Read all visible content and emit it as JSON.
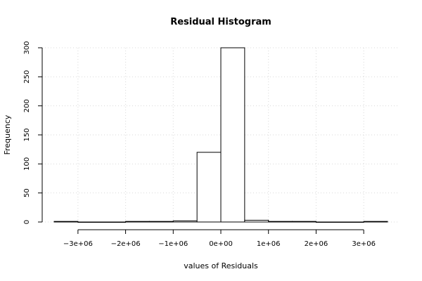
{
  "chart_data": {
    "type": "bar",
    "title": "Residual Histogram",
    "xlabel": "values of Residuals",
    "ylabel": "Frequency",
    "bin_width": 500000,
    "bins": [
      {
        "x0": -3500000,
        "x1": -3000000,
        "count": 1
      },
      {
        "x0": -3000000,
        "x1": -2500000,
        "count": 0
      },
      {
        "x0": -2500000,
        "x1": -2000000,
        "count": 0
      },
      {
        "x0": -2000000,
        "x1": -1500000,
        "count": 1
      },
      {
        "x0": -1500000,
        "x1": -1000000,
        "count": 1
      },
      {
        "x0": -1000000,
        "x1": -500000,
        "count": 2
      },
      {
        "x0": -500000,
        "x1": 0,
        "count": 120
      },
      {
        "x0": 0,
        "x1": 500000,
        "count": 300
      },
      {
        "x0": 500000,
        "x1": 1000000,
        "count": 3
      },
      {
        "x0": 1000000,
        "x1": 1500000,
        "count": 1
      },
      {
        "x0": 1500000,
        "x1": 2000000,
        "count": 1
      },
      {
        "x0": 2000000,
        "x1": 2500000,
        "count": 0
      },
      {
        "x0": 2500000,
        "x1": 3000000,
        "count": 0
      },
      {
        "x0": 3000000,
        "x1": 3500000,
        "count": 1
      }
    ],
    "xlim": [
      -3500000,
      3500000
    ],
    "ylim": [
      0,
      300
    ],
    "x_ticks": [
      {
        "value": -3000000,
        "label": "−3e+06"
      },
      {
        "value": -2000000,
        "label": "−2e+06"
      },
      {
        "value": -1000000,
        "label": "−1e+06"
      },
      {
        "value": 0,
        "label": "0e+00"
      },
      {
        "value": 1000000,
        "label": "1e+06"
      },
      {
        "value": 2000000,
        "label": "2e+06"
      },
      {
        "value": 3000000,
        "label": "3e+06"
      }
    ],
    "y_ticks": [
      {
        "value": 0,
        "label": "0"
      },
      {
        "value": 50,
        "label": "50"
      },
      {
        "value": 100,
        "label": "100"
      },
      {
        "value": 150,
        "label": "150"
      },
      {
        "value": 200,
        "label": "200"
      },
      {
        "value": 250,
        "label": "250"
      },
      {
        "value": 300,
        "label": "300"
      }
    ],
    "grid": true,
    "legend": "none"
  }
}
